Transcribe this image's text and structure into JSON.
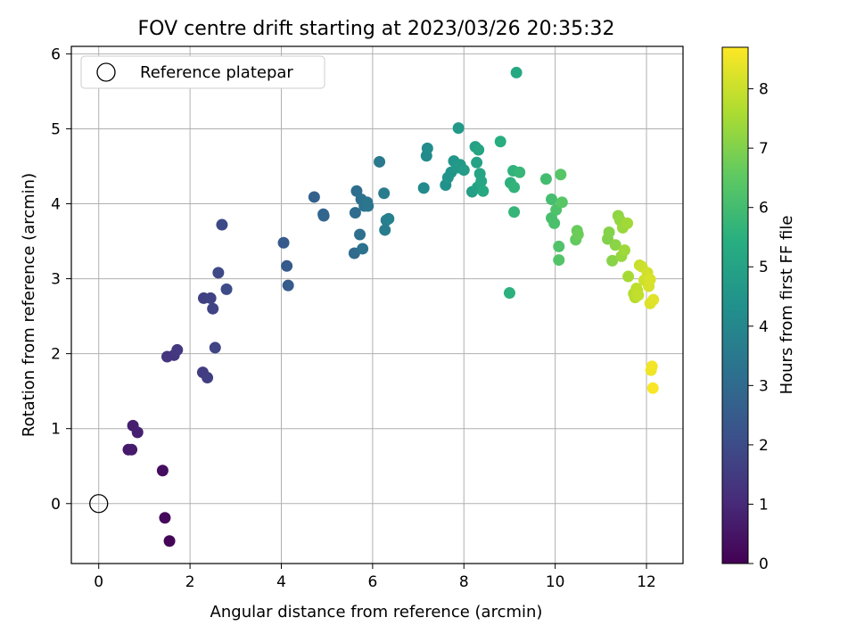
{
  "chart_data": {
    "type": "scatter",
    "title": "FOV centre drift starting at 2023/03/26 20:35:32",
    "xlabel": "Angular distance from reference (arcmin)",
    "ylabel": "Rotation from reference (arcmin)",
    "xlim": [
      -0.6,
      12.8
    ],
    "ylim": [
      -0.8,
      6.1
    ],
    "xticks": [
      0,
      2,
      4,
      6,
      8,
      10,
      12
    ],
    "yticks": [
      0,
      1,
      2,
      3,
      4,
      5,
      6
    ],
    "grid": true,
    "legend": {
      "placement": "top-left",
      "entries": [
        "Reference platepar"
      ]
    },
    "reference_point": {
      "x": 0,
      "y": 0
    },
    "colorbar": {
      "label": "Hours from first FF file",
      "range": [
        0,
        8.7
      ],
      "ticks": [
        0,
        1,
        2,
        3,
        4,
        5,
        6,
        7,
        8
      ],
      "colormap": "viridis"
    },
    "points": [
      {
        "x": 1.55,
        "y": -0.5,
        "c": 0.1
      },
      {
        "x": 1.45,
        "y": -0.19,
        "c": 0.2
      },
      {
        "x": 1.4,
        "y": 0.44,
        "c": 0.3
      },
      {
        "x": 0.65,
        "y": 0.72,
        "c": 0.6
      },
      {
        "x": 0.72,
        "y": 0.72,
        "c": 0.65
      },
      {
        "x": 0.75,
        "y": 1.04,
        "c": 0.75
      },
      {
        "x": 0.85,
        "y": 0.95,
        "c": 0.8
      },
      {
        "x": 1.5,
        "y": 1.96,
        "c": 1.3
      },
      {
        "x": 1.65,
        "y": 1.98,
        "c": 1.35
      },
      {
        "x": 1.72,
        "y": 2.05,
        "c": 1.4
      },
      {
        "x": 2.28,
        "y": 1.75,
        "c": 1.55
      },
      {
        "x": 2.38,
        "y": 1.68,
        "c": 1.6
      },
      {
        "x": 2.3,
        "y": 2.74,
        "c": 1.65
      },
      {
        "x": 2.45,
        "y": 2.74,
        "c": 1.7
      },
      {
        "x": 2.5,
        "y": 2.6,
        "c": 1.75
      },
      {
        "x": 2.55,
        "y": 2.08,
        "c": 1.8
      },
      {
        "x": 2.62,
        "y": 3.08,
        "c": 1.9
      },
      {
        "x": 2.7,
        "y": 3.72,
        "c": 1.95
      },
      {
        "x": 2.8,
        "y": 2.86,
        "c": 2.0
      },
      {
        "x": 4.05,
        "y": 3.48,
        "c": 2.4
      },
      {
        "x": 4.12,
        "y": 3.17,
        "c": 2.45
      },
      {
        "x": 4.15,
        "y": 2.91,
        "c": 2.5
      },
      {
        "x": 4.72,
        "y": 4.09,
        "c": 2.7
      },
      {
        "x": 4.92,
        "y": 3.86,
        "c": 2.8
      },
      {
        "x": 4.93,
        "y": 3.84,
        "c": 2.85
      },
      {
        "x": 5.6,
        "y": 3.34,
        "c": 3.0
      },
      {
        "x": 5.62,
        "y": 3.88,
        "c": 3.05
      },
      {
        "x": 5.65,
        "y": 4.17,
        "c": 3.1
      },
      {
        "x": 5.72,
        "y": 3.59,
        "c": 3.15
      },
      {
        "x": 5.75,
        "y": 4.06,
        "c": 3.2
      },
      {
        "x": 5.78,
        "y": 3.4,
        "c": 3.25
      },
      {
        "x": 5.82,
        "y": 3.97,
        "c": 3.3
      },
      {
        "x": 5.88,
        "y": 4.02,
        "c": 3.35
      },
      {
        "x": 5.9,
        "y": 3.97,
        "c": 3.4
      },
      {
        "x": 6.15,
        "y": 4.56,
        "c": 3.5
      },
      {
        "x": 6.25,
        "y": 4.14,
        "c": 3.6
      },
      {
        "x": 6.27,
        "y": 3.65,
        "c": 3.65
      },
      {
        "x": 6.3,
        "y": 3.78,
        "c": 3.7
      },
      {
        "x": 6.35,
        "y": 3.8,
        "c": 3.75
      },
      {
        "x": 7.12,
        "y": 4.21,
        "c": 4.1
      },
      {
        "x": 7.18,
        "y": 4.64,
        "c": 4.15
      },
      {
        "x": 7.2,
        "y": 4.74,
        "c": 4.2
      },
      {
        "x": 7.6,
        "y": 4.25,
        "c": 4.4
      },
      {
        "x": 7.65,
        "y": 4.35,
        "c": 4.45
      },
      {
        "x": 7.72,
        "y": 4.42,
        "c": 4.5
      },
      {
        "x": 7.78,
        "y": 4.57,
        "c": 4.55
      },
      {
        "x": 7.85,
        "y": 4.48,
        "c": 4.6
      },
      {
        "x": 7.88,
        "y": 5.01,
        "c": 4.65
      },
      {
        "x": 7.92,
        "y": 4.52,
        "c": 4.7
      },
      {
        "x": 8.0,
        "y": 4.45,
        "c": 4.75
      },
      {
        "x": 8.18,
        "y": 4.16,
        "c": 4.85
      },
      {
        "x": 8.25,
        "y": 4.76,
        "c": 4.9
      },
      {
        "x": 8.28,
        "y": 4.55,
        "c": 4.95
      },
      {
        "x": 8.3,
        "y": 4.22,
        "c": 5.0
      },
      {
        "x": 8.32,
        "y": 4.72,
        "c": 5.05
      },
      {
        "x": 8.35,
        "y": 4.4,
        "c": 5.1
      },
      {
        "x": 8.38,
        "y": 4.3,
        "c": 5.15
      },
      {
        "x": 8.42,
        "y": 4.17,
        "c": 5.2
      },
      {
        "x": 8.8,
        "y": 4.83,
        "c": 5.4
      },
      {
        "x": 9.0,
        "y": 2.81,
        "c": 5.5
      },
      {
        "x": 9.02,
        "y": 4.28,
        "c": 5.55
      },
      {
        "x": 9.08,
        "y": 4.44,
        "c": 5.6
      },
      {
        "x": 9.1,
        "y": 4.22,
        "c": 5.65
      },
      {
        "x": 9.1,
        "y": 3.89,
        "c": 5.7
      },
      {
        "x": 9.15,
        "y": 5.75,
        "c": 5.2
      },
      {
        "x": 9.22,
        "y": 4.42,
        "c": 5.75
      },
      {
        "x": 9.8,
        "y": 4.33,
        "c": 6.0
      },
      {
        "x": 9.92,
        "y": 4.06,
        "c": 6.05
      },
      {
        "x": 9.92,
        "y": 3.81,
        "c": 6.1
      },
      {
        "x": 9.98,
        "y": 3.74,
        "c": 6.15
      },
      {
        "x": 10.02,
        "y": 3.92,
        "c": 6.2
      },
      {
        "x": 10.08,
        "y": 3.43,
        "c": 6.25
      },
      {
        "x": 10.08,
        "y": 3.25,
        "c": 6.3
      },
      {
        "x": 10.12,
        "y": 4.39,
        "c": 6.35
      },
      {
        "x": 10.15,
        "y": 4.02,
        "c": 6.4
      },
      {
        "x": 10.45,
        "y": 3.52,
        "c": 6.6
      },
      {
        "x": 10.48,
        "y": 3.64,
        "c": 6.65
      },
      {
        "x": 10.5,
        "y": 3.59,
        "c": 6.7
      },
      {
        "x": 11.15,
        "y": 3.53,
        "c": 7.0
      },
      {
        "x": 11.18,
        "y": 3.62,
        "c": 7.05
      },
      {
        "x": 11.25,
        "y": 3.24,
        "c": 7.1
      },
      {
        "x": 11.32,
        "y": 3.45,
        "c": 7.15
      },
      {
        "x": 11.38,
        "y": 3.84,
        "c": 7.2
      },
      {
        "x": 11.42,
        "y": 3.78,
        "c": 7.25
      },
      {
        "x": 11.45,
        "y": 3.3,
        "c": 7.3
      },
      {
        "x": 11.48,
        "y": 3.68,
        "c": 7.35
      },
      {
        "x": 11.52,
        "y": 3.38,
        "c": 7.4
      },
      {
        "x": 11.58,
        "y": 3.74,
        "c": 7.45
      },
      {
        "x": 11.6,
        "y": 3.03,
        "c": 7.5
      },
      {
        "x": 11.72,
        "y": 2.8,
        "c": 7.7
      },
      {
        "x": 11.75,
        "y": 2.75,
        "c": 7.75
      },
      {
        "x": 11.78,
        "y": 2.87,
        "c": 7.8
      },
      {
        "x": 11.8,
        "y": 2.84,
        "c": 7.85
      },
      {
        "x": 11.82,
        "y": 2.78,
        "c": 7.9
      },
      {
        "x": 11.85,
        "y": 3.18,
        "c": 7.95
      },
      {
        "x": 11.9,
        "y": 3.16,
        "c": 8.0
      },
      {
        "x": 11.95,
        "y": 2.98,
        "c": 8.05
      },
      {
        "x": 12.02,
        "y": 3.08,
        "c": 8.1
      },
      {
        "x": 12.05,
        "y": 2.9,
        "c": 8.15
      },
      {
        "x": 12.08,
        "y": 2.99,
        "c": 8.2
      },
      {
        "x": 12.08,
        "y": 2.67,
        "c": 8.25
      },
      {
        "x": 12.15,
        "y": 2.72,
        "c": 8.3
      },
      {
        "x": 12.1,
        "y": 1.78,
        "c": 8.5
      },
      {
        "x": 12.12,
        "y": 1.83,
        "c": 8.55
      },
      {
        "x": 12.14,
        "y": 1.54,
        "c": 8.65
      }
    ]
  }
}
